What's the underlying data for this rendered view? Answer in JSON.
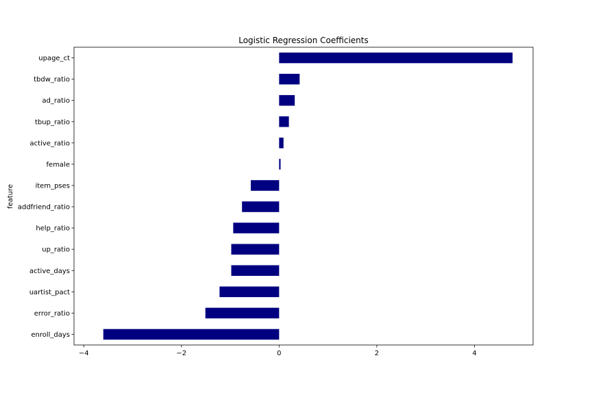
{
  "chart_data": {
    "type": "bar",
    "orientation": "horizontal",
    "title": "Logistic Regression Coefficients",
    "xlabel": "",
    "ylabel": "feature",
    "xlim": [
      -4.2,
      5.2
    ],
    "xticks": [
      -4,
      -2,
      0,
      2,
      4
    ],
    "xtick_labels": [
      "−4",
      "−2",
      "0",
      "2",
      "4"
    ],
    "grid": false,
    "bar_color": "#000080",
    "categories": [
      "upage_ct",
      "tbdw_ratio",
      "ad_ratio",
      "tbup_ratio",
      "active_ratio",
      "female",
      "item_pses",
      "addfriend_ratio",
      "help_ratio",
      "up_ratio",
      "active_days",
      "uartist_pact",
      "error_ratio",
      "enroll_days"
    ],
    "values": [
      4.78,
      0.42,
      0.32,
      0.2,
      0.09,
      0.03,
      -0.58,
      -0.76,
      -0.94,
      -0.98,
      -0.98,
      -1.22,
      -1.51,
      -3.6
    ]
  }
}
